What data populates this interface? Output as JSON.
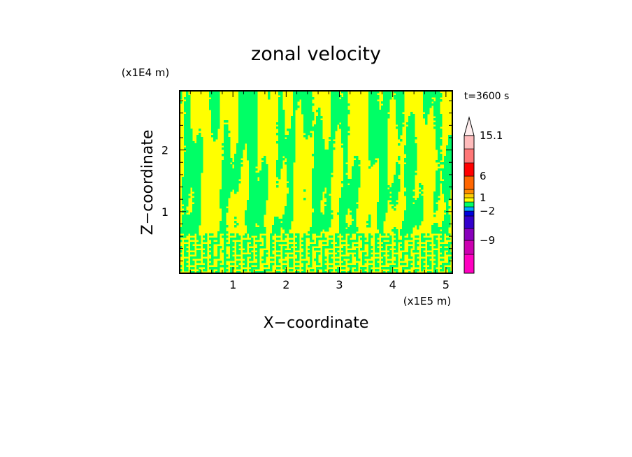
{
  "chart_data": {
    "type": "heatmap",
    "title": "zonal velocity",
    "xlabel": "X−coordinate",
    "ylabel": "Z−coordinate",
    "x_unit": "(x1E5 m)",
    "y_unit": "(x1E4 m)",
    "time_label": "t=3600 s",
    "xlim": [
      0,
      5.12
    ],
    "ylim": [
      0,
      2.96
    ],
    "x_ticks": [
      1,
      2,
      3,
      4,
      5
    ],
    "y_ticks": [
      1,
      2
    ],
    "field_colors": {
      "positive_small": "#ffff00",
      "negative_small": "#00ff66"
    },
    "colorbar": {
      "labels": [
        "15.1",
        "6",
        "1",
        "−2",
        "−9"
      ],
      "label_levels": [
        15.1,
        6,
        1,
        -2,
        -9
      ],
      "segments": [
        {
          "color": "#ff00c0",
          "from": -15.1,
          "to": -12
        },
        {
          "color": "#cc00b0",
          "from": -12,
          "to": -9
        },
        {
          "color": "#8800bb",
          "from": -9,
          "to": -6
        },
        {
          "color": "#3300cc",
          "from": -6,
          "to": -4
        },
        {
          "color": "#0000dd",
          "from": -4,
          "to": -2
        },
        {
          "color": "#00aaff",
          "from": -2,
          "to": -1
        },
        {
          "color": "#00ff66",
          "from": -1,
          "to": 0
        },
        {
          "color": "#ffff00",
          "from": 0,
          "to": 1
        },
        {
          "color": "#ffcc00",
          "from": 1,
          "to": 2
        },
        {
          "color": "#ff8800",
          "from": 2,
          "to": 3
        },
        {
          "color": "#ff6600",
          "from": 3,
          "to": 6
        },
        {
          "color": "#ff0000",
          "from": 6,
          "to": 9
        },
        {
          "color": "#ff7777",
          "from": 9,
          "to": 12
        },
        {
          "color": "#ffbbbb",
          "from": 12,
          "to": 15.1
        }
      ],
      "extend_color": "#ffeeee"
    }
  }
}
